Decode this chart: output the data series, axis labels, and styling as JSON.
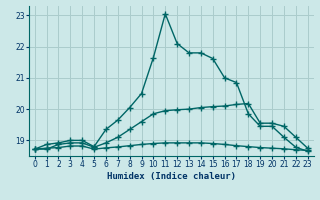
{
  "xlabel": "Humidex (Indice chaleur)",
  "bg_color": "#cce8e8",
  "grid_color": "#aacccc",
  "line_color": "#006666",
  "xlim": [
    -0.5,
    23.5
  ],
  "ylim": [
    18.5,
    23.3
  ],
  "yticks": [
    19,
    20,
    21,
    22,
    23
  ],
  "xticks": [
    0,
    1,
    2,
    3,
    4,
    5,
    6,
    7,
    8,
    9,
    10,
    11,
    12,
    13,
    14,
    15,
    16,
    17,
    18,
    19,
    20,
    21,
    22,
    23
  ],
  "line1_x": [
    0,
    1,
    2,
    3,
    4,
    5,
    6,
    7,
    8,
    9,
    10,
    11,
    12,
    13,
    14,
    15,
    16,
    17,
    18,
    19,
    20,
    21,
    22,
    23
  ],
  "line1_y": [
    18.72,
    18.87,
    18.92,
    19.0,
    19.0,
    18.8,
    19.35,
    19.65,
    20.05,
    20.5,
    21.65,
    23.05,
    22.1,
    21.8,
    21.8,
    21.62,
    21.0,
    20.85,
    19.85,
    19.45,
    19.45,
    19.1,
    18.78,
    18.65
  ],
  "line2_x": [
    0,
    1,
    2,
    3,
    4,
    5,
    6,
    7,
    8,
    9,
    10,
    11,
    12,
    13,
    14,
    15,
    16,
    17,
    18,
    19,
    20,
    21,
    22,
    23
  ],
  "line2_y": [
    18.72,
    18.72,
    18.87,
    18.92,
    18.92,
    18.78,
    18.92,
    19.1,
    19.35,
    19.6,
    19.85,
    19.95,
    19.98,
    20.0,
    20.05,
    20.08,
    20.1,
    20.15,
    20.18,
    19.55,
    19.55,
    19.45,
    19.1,
    18.75
  ],
  "line3_x": [
    0,
    1,
    2,
    3,
    4,
    5,
    6,
    7,
    8,
    9,
    10,
    11,
    12,
    13,
    14,
    15,
    16,
    17,
    18,
    19,
    20,
    21,
    22,
    23
  ],
  "line3_y": [
    18.72,
    18.75,
    18.77,
    18.82,
    18.82,
    18.72,
    18.76,
    18.79,
    18.83,
    18.87,
    18.9,
    18.92,
    18.92,
    18.92,
    18.92,
    18.9,
    18.87,
    18.83,
    18.8,
    18.77,
    18.75,
    18.73,
    18.7,
    18.68
  ]
}
